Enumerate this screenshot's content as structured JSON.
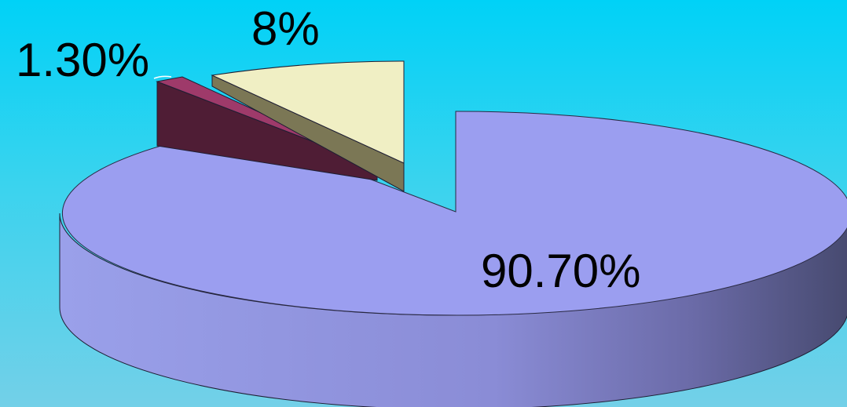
{
  "chart_data": {
    "type": "pie",
    "style": "3d-exploded",
    "title": "",
    "slices": [
      {
        "label": "90.70%",
        "value": 90.7,
        "color": "#9b9ef0"
      },
      {
        "label": "1.30%",
        "value": 1.3,
        "color": "#9e3a6a"
      },
      {
        "label": "8%",
        "value": 8,
        "color": "#f0efc4"
      }
    ],
    "legend": "none"
  }
}
